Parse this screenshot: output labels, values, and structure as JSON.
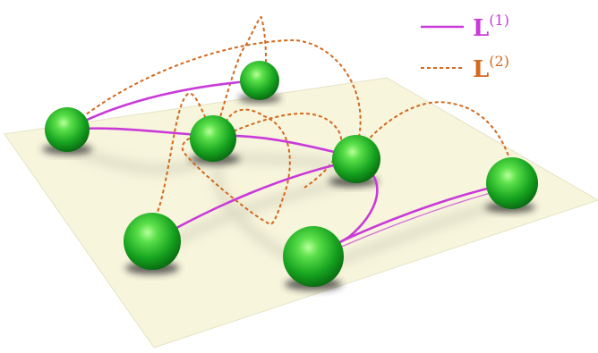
{
  "legend": {
    "l1": {
      "symbol": "L",
      "superscript": "(1)",
      "color": "#c93ad9"
    },
    "l2": {
      "symbol": "L",
      "superscript": "(2)",
      "color": "#d2691e"
    }
  },
  "colors": {
    "plane": "#f7f5dc",
    "node": "#22b52a",
    "shadow": "#3a3a3a"
  }
}
